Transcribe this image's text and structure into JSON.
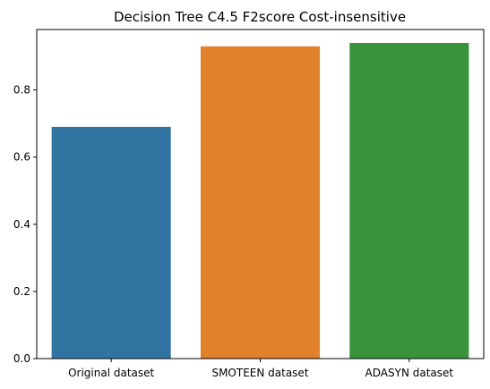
{
  "chart_data": {
    "type": "bar",
    "title": "Decision Tree C4.5 F2score Cost-insensitive",
    "xlabel": "",
    "ylabel": "",
    "categories": [
      "Original dataset",
      "SMOTEEN dataset",
      "ADASYN dataset"
    ],
    "values": [
      0.69,
      0.93,
      0.94
    ],
    "colors": [
      "#3274a1",
      "#e1812c",
      "#3a923a"
    ],
    "ylim": [
      0,
      0.98
    ],
    "yticks": [
      0.0,
      0.2,
      0.4,
      0.6,
      0.8
    ],
    "ytick_labels": [
      "0.0",
      "0.2",
      "0.4",
      "0.6",
      "0.8"
    ],
    "grid": false,
    "legend": "none"
  }
}
